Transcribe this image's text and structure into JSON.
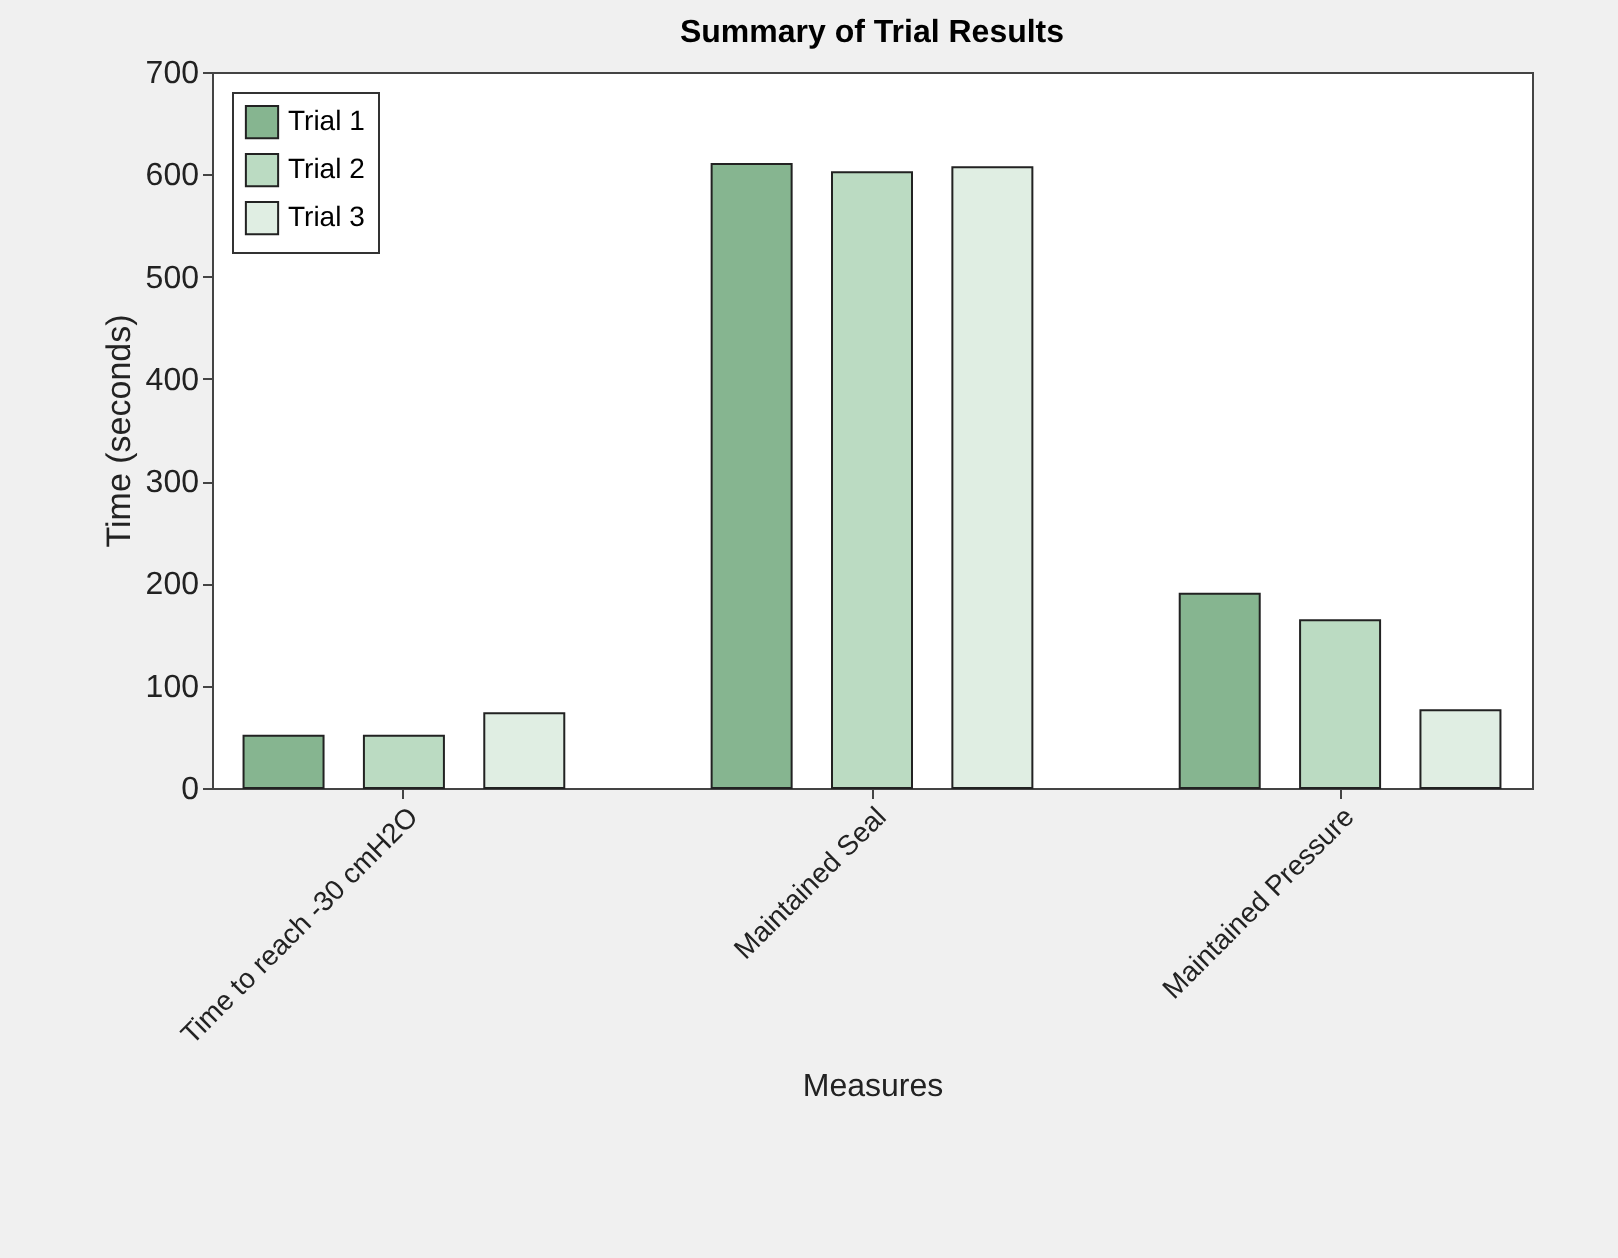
{
  "chart_data": {
    "type": "bar",
    "title": "Summary of Trial Results",
    "xlabel": "Measures",
    "ylabel": "Time (seconds)",
    "categories": [
      "Time to reach -30 cmH2O",
      "Maintained Seal",
      "Maintained Pressure"
    ],
    "series": [
      {
        "name": "Trial 1",
        "color": "#86b590",
        "values": [
          51,
          610,
          190
        ]
      },
      {
        "name": "Trial 2",
        "color": "#bbdbc2",
        "values": [
          51,
          602,
          164
        ]
      },
      {
        "name": "Trial 3",
        "color": "#e0eee3",
        "values": [
          73,
          607,
          76
        ]
      }
    ],
    "ylim": [
      0,
      700
    ],
    "yticks": [
      0,
      100,
      200,
      300,
      400,
      500,
      600,
      700
    ],
    "grid": false,
    "legend": "top left"
  }
}
